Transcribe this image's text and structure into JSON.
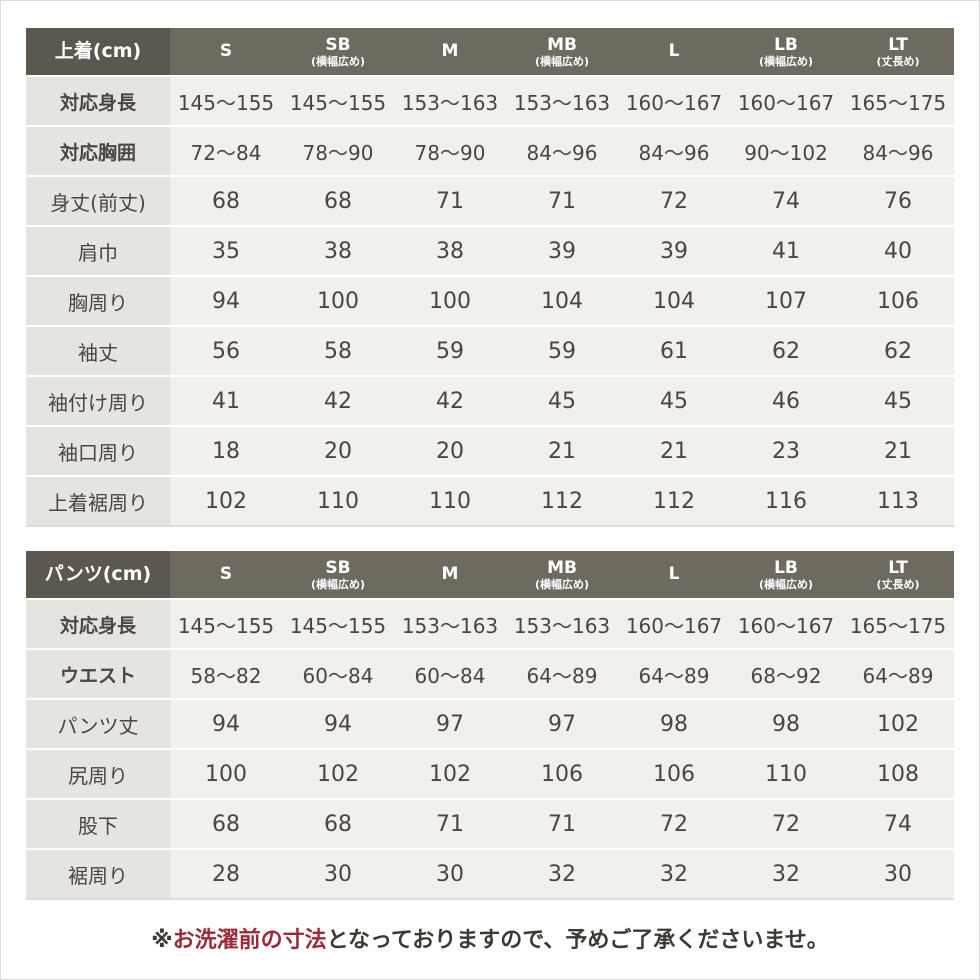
{
  "sizes": [
    {
      "name": "S",
      "note": ""
    },
    {
      "name": "SB",
      "note": "(横幅広め)"
    },
    {
      "name": "M",
      "note": ""
    },
    {
      "name": "MB",
      "note": "(横幅広め)"
    },
    {
      "name": "L",
      "note": ""
    },
    {
      "name": "LB",
      "note": "(横幅広め)"
    },
    {
      "name": "LT",
      "note": "(丈長め)"
    }
  ],
  "jacket": {
    "title": "上着(cm)",
    "rows": [
      {
        "label": "対応身長",
        "bold": true,
        "values": [
          "145〜155",
          "145〜155",
          "153〜163",
          "153〜163",
          "160〜167",
          "160〜167",
          "165〜175"
        ]
      },
      {
        "label": "対応胸囲",
        "bold": true,
        "values": [
          "72〜84",
          "78〜90",
          "78〜90",
          "84〜96",
          "84〜96",
          "90〜102",
          "84〜96"
        ]
      },
      {
        "label": "身丈(前丈)",
        "bold": false,
        "values": [
          "68",
          "68",
          "71",
          "71",
          "72",
          "74",
          "76"
        ]
      },
      {
        "label": "肩巾",
        "bold": false,
        "values": [
          "35",
          "38",
          "38",
          "39",
          "39",
          "41",
          "40"
        ]
      },
      {
        "label": "胸周り",
        "bold": false,
        "values": [
          "94",
          "100",
          "100",
          "104",
          "104",
          "107",
          "106"
        ]
      },
      {
        "label": "袖丈",
        "bold": false,
        "values": [
          "56",
          "58",
          "59",
          "59",
          "61",
          "62",
          "62"
        ]
      },
      {
        "label": "袖付け周り",
        "bold": false,
        "values": [
          "41",
          "42",
          "42",
          "45",
          "45",
          "46",
          "45"
        ]
      },
      {
        "label": "袖口周り",
        "bold": false,
        "values": [
          "18",
          "20",
          "20",
          "21",
          "21",
          "23",
          "21"
        ]
      },
      {
        "label": "上着裾周り",
        "bold": false,
        "values": [
          "102",
          "110",
          "110",
          "112",
          "112",
          "116",
          "113"
        ]
      }
    ]
  },
  "pants": {
    "title": "パンツ(cm)",
    "rows": [
      {
        "label": "対応身長",
        "bold": true,
        "values": [
          "145〜155",
          "145〜155",
          "153〜163",
          "153〜163",
          "160〜167",
          "160〜167",
          "165〜175"
        ]
      },
      {
        "label": "ウエスト",
        "bold": true,
        "values": [
          "58〜82",
          "60〜84",
          "60〜84",
          "64〜89",
          "64〜89",
          "68〜92",
          "64〜89"
        ]
      },
      {
        "label": "パンツ丈",
        "bold": false,
        "values": [
          "94",
          "94",
          "97",
          "97",
          "98",
          "98",
          "102"
        ]
      },
      {
        "label": "尻周り",
        "bold": false,
        "values": [
          "100",
          "102",
          "102",
          "106",
          "106",
          "110",
          "108"
        ]
      },
      {
        "label": "股下",
        "bold": false,
        "values": [
          "68",
          "68",
          "71",
          "71",
          "72",
          "72",
          "74"
        ]
      },
      {
        "label": "裾周り",
        "bold": false,
        "values": [
          "28",
          "30",
          "30",
          "32",
          "32",
          "32",
          "30"
        ]
      }
    ]
  },
  "footnote": {
    "prefix": "※",
    "accent": "お洗濯前の寸法",
    "suffix": "となっておりますので、予めご了承くださいませ。",
    "accent_color": "#9b2a38"
  }
}
